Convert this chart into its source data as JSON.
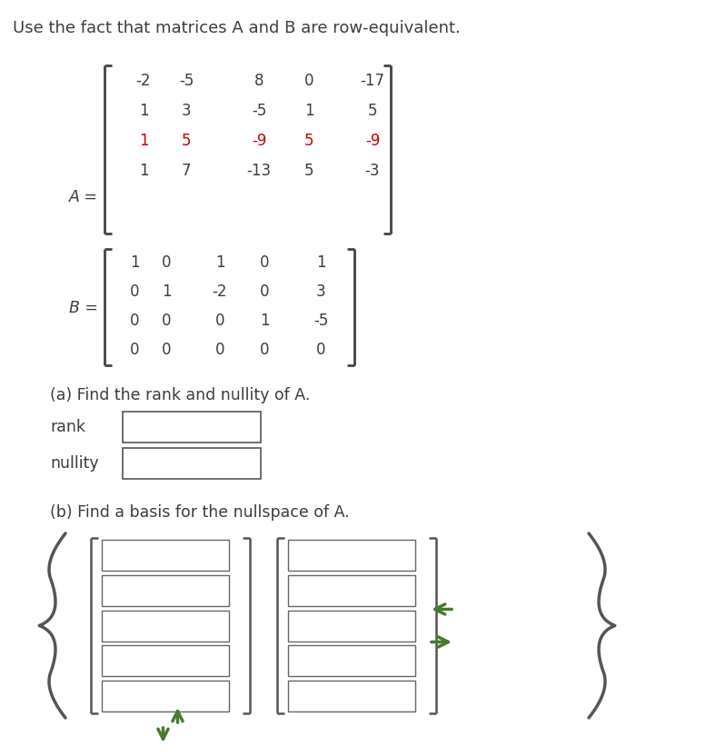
{
  "title": "Use the fact that matrices A and B are row-equivalent.",
  "title_fontsize": 13,
  "A_label": "A =",
  "B_label": "B =",
  "A_rows": [
    [
      "-2",
      "-5",
      "8",
      "0",
      "-17"
    ],
    [
      "1",
      "3",
      "-5",
      "1",
      "5"
    ],
    [
      "1",
      "5",
      "-9",
      "5",
      "-9"
    ],
    [
      "1",
      "7",
      "-13",
      "5",
      "-3"
    ]
  ],
  "A_red_row": 2,
  "B_rows": [
    [
      "1",
      "0",
      "1",
      "0",
      "1"
    ],
    [
      "0",
      "1",
      "-2",
      "0",
      "3"
    ],
    [
      "0",
      "0",
      "0",
      "1",
      "-5"
    ],
    [
      "0",
      "0",
      "0",
      "0",
      "0"
    ]
  ],
  "part_a_text": "(a) Find the rank and nullity of A.",
  "rank_label": "rank",
  "nullity_label": "nullity",
  "part_b_text": "(b) Find a basis for the nullspace of A.",
  "text_color": "#3d3d3d",
  "red_color": "#CC0000",
  "green_color": "#4A7A2E",
  "bracket_color": "#444444",
  "bg_color": "#ffffff",
  "matrix_fontsize": 12,
  "label_fontsize": 12.5
}
